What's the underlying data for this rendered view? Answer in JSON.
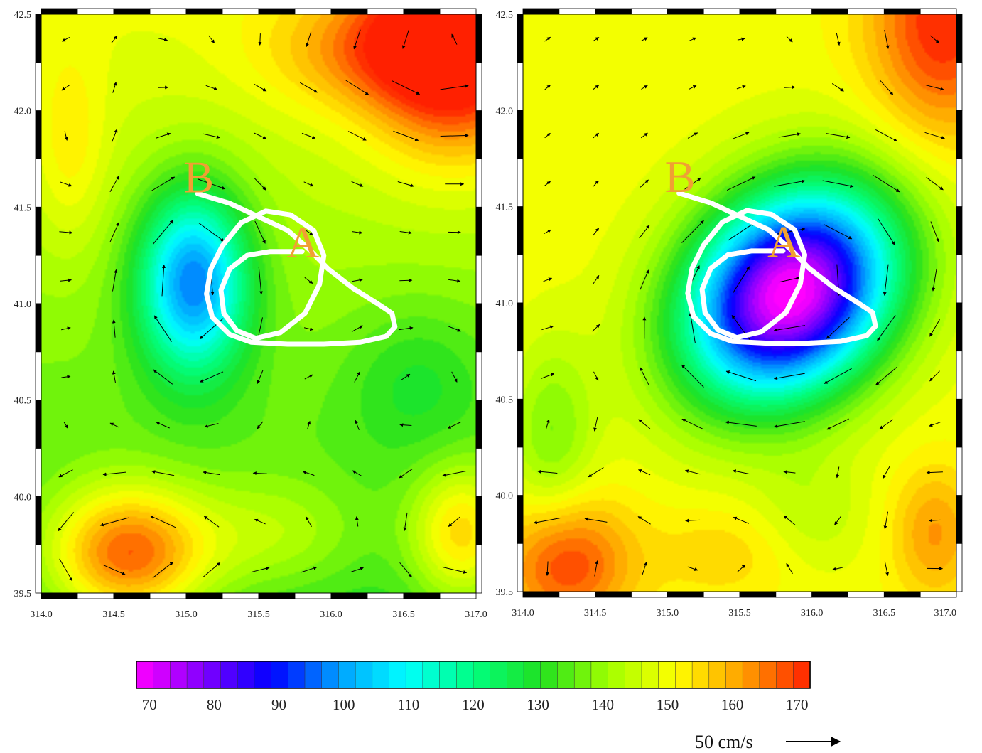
{
  "chart_data": [
    {
      "type": "heatmap",
      "title": "",
      "xlabel": "",
      "ylabel": "",
      "xlim": [
        314.0,
        317.0
      ],
      "ylim": [
        39.5,
        42.5
      ],
      "x_ticks": [
        "314.0",
        "314.5",
        "315.0",
        "315.5",
        "316.0",
        "316.5",
        "317.0"
      ],
      "y_ticks": [
        "39.5",
        "40.0",
        "40.5",
        "41.0",
        "41.5",
        "42.0",
        "42.5"
      ],
      "field_features": [
        {
          "kind": "min",
          "x": 315.0,
          "y": 41.15,
          "value": 100
        },
        {
          "kind": "max",
          "x": 316.8,
          "y": 42.3,
          "value": 172
        },
        {
          "kind": "max",
          "x": 314.55,
          "y": 39.75,
          "value": 172
        },
        {
          "kind": "max",
          "x": 316.9,
          "y": 39.8,
          "value": 160
        }
      ],
      "point_labels": [
        {
          "text": "B",
          "x": 315.08,
          "y": 41.65
        },
        {
          "text": "A",
          "x": 315.8,
          "y": 41.32
        }
      ]
    },
    {
      "type": "heatmap",
      "title": "",
      "xlabel": "",
      "ylabel": "",
      "xlim": [
        314.0,
        317.0
      ],
      "ylim": [
        39.5,
        42.5
      ],
      "x_ticks": [
        "314.0",
        "314.5",
        "315.0",
        "315.5",
        "316.0",
        "316.5",
        "317.0"
      ],
      "y_ticks": [
        "39.5",
        "40.0",
        "40.5",
        "41.0",
        "41.5",
        "42.0",
        "42.5"
      ],
      "field_features": [
        {
          "kind": "min",
          "x": 315.95,
          "y": 41.05,
          "value": 68
        },
        {
          "kind": "max",
          "x": 316.9,
          "y": 42.4,
          "value": 172
        },
        {
          "kind": "max",
          "x": 314.3,
          "y": 39.7,
          "value": 168
        },
        {
          "kind": "max",
          "x": 316.85,
          "y": 39.8,
          "value": 160
        }
      ],
      "point_labels": [
        {
          "text": "B",
          "x": 315.08,
          "y": 41.65
        },
        {
          "text": "A",
          "x": 315.8,
          "y": 41.32
        }
      ]
    }
  ],
  "colorbar": {
    "min": 68,
    "max": 172,
    "ticks": [
      "70",
      "80",
      "90",
      "100",
      "110",
      "120",
      "130",
      "140",
      "150",
      "160",
      "170"
    ],
    "colors": [
      "#ff00ff",
      "#8000ff",
      "#0000ff",
      "#00a0ff",
      "#00ffff",
      "#00ff80",
      "#20e020",
      "#a0ff00",
      "#ffff00",
      "#ffa000",
      "#ff2000"
    ]
  },
  "vector_scale": {
    "label": "50 cm/s"
  }
}
